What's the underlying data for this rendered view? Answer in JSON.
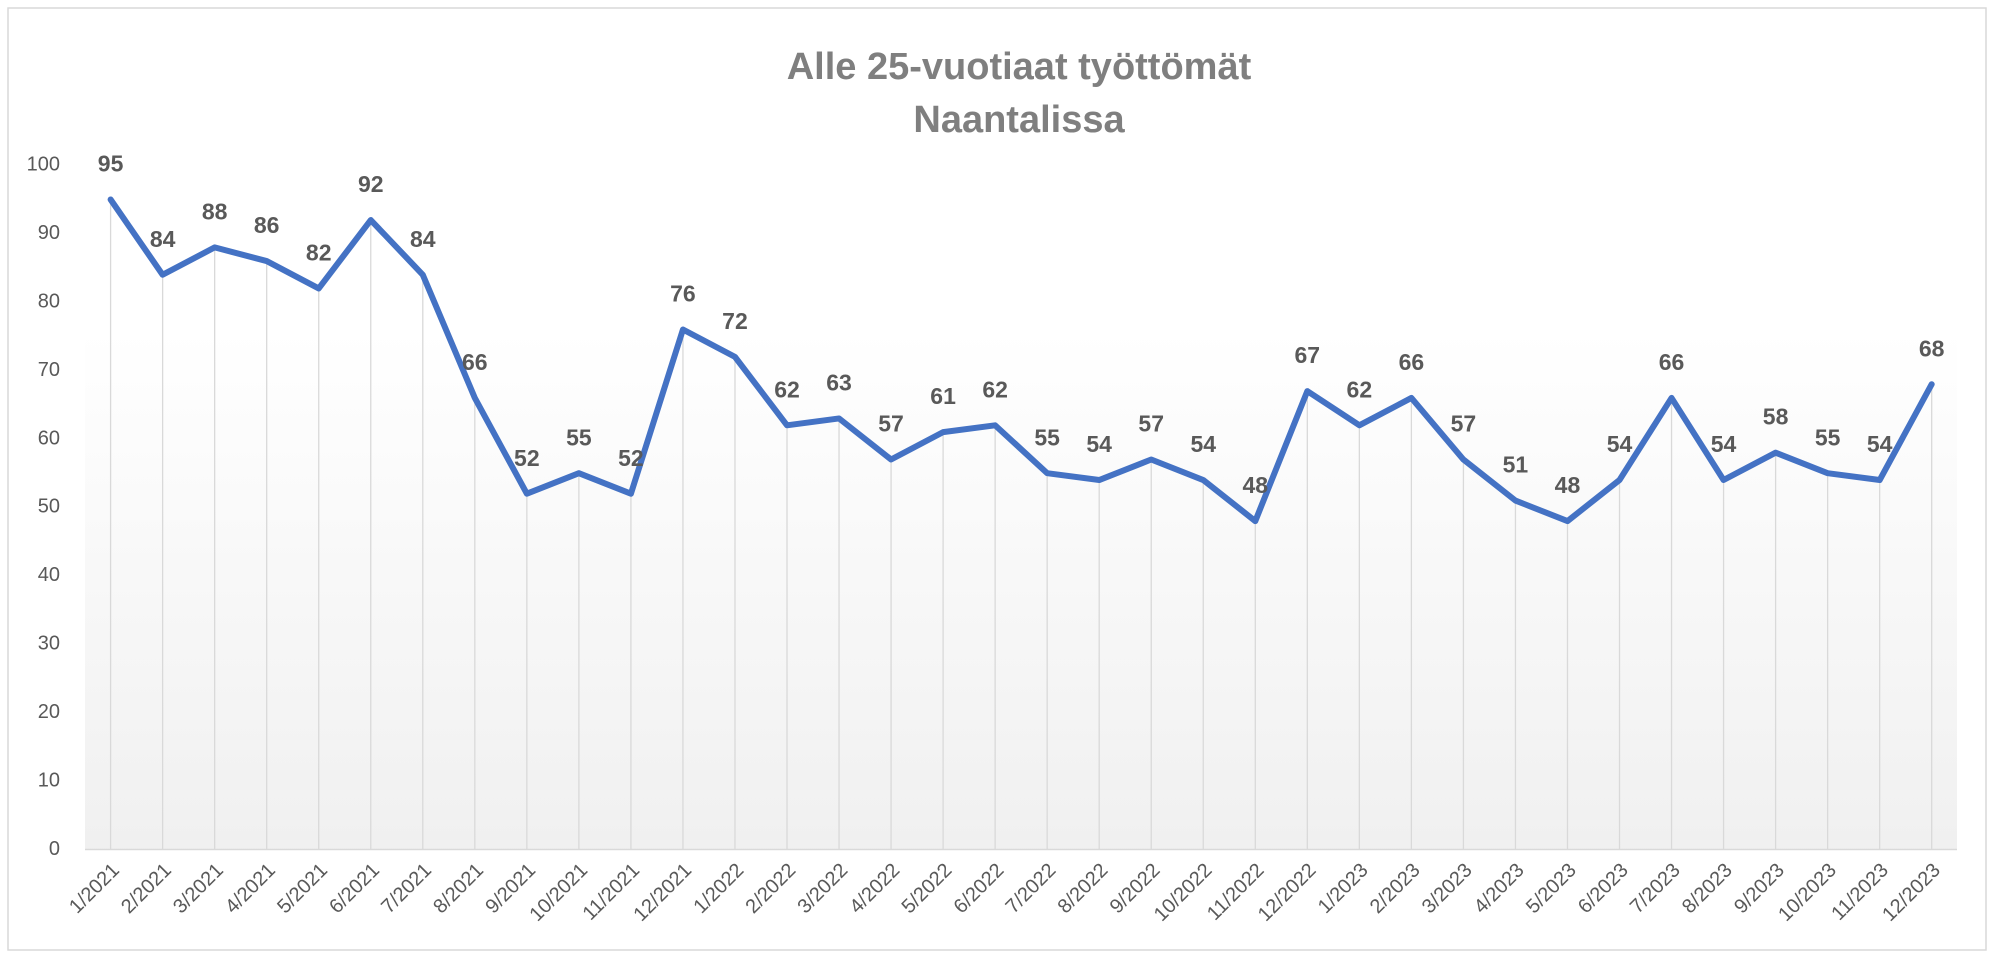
{
  "chart_data": {
    "type": "line",
    "title": [
      "Alle 25-vuotiaat työttömät",
      "Naantalissa"
    ],
    "categories": [
      "1/2021",
      "2/2021",
      "3/2021",
      "4/2021",
      "5/2021",
      "6/2021",
      "7/2021",
      "8/2021",
      "9/2021",
      "10/2021",
      "11/2021",
      "12/2021",
      "1/2022",
      "2/2022",
      "3/2022",
      "4/2022",
      "5/2022",
      "6/2022",
      "7/2022",
      "8/2022",
      "9/2022",
      "10/2022",
      "11/2022",
      "12/2022",
      "1/2023",
      "2/2023",
      "3/2023",
      "4/2023",
      "5/2023",
      "6/2023",
      "7/2023",
      "8/2023",
      "9/2023",
      "10/2023",
      "11/2023",
      "12/2023"
    ],
    "values": [
      95,
      84,
      88,
      86,
      82,
      92,
      84,
      66,
      52,
      55,
      52,
      76,
      72,
      62,
      63,
      57,
      61,
      62,
      55,
      54,
      57,
      54,
      48,
      67,
      62,
      66,
      57,
      51,
      48,
      54,
      66,
      54,
      58,
      55,
      54,
      68
    ],
    "color": "#4472c4",
    "ylim": [
      0,
      100
    ],
    "yticks": [
      0,
      10,
      20,
      30,
      40,
      50,
      60,
      70,
      80,
      90,
      100
    ],
    "grid": false
  }
}
